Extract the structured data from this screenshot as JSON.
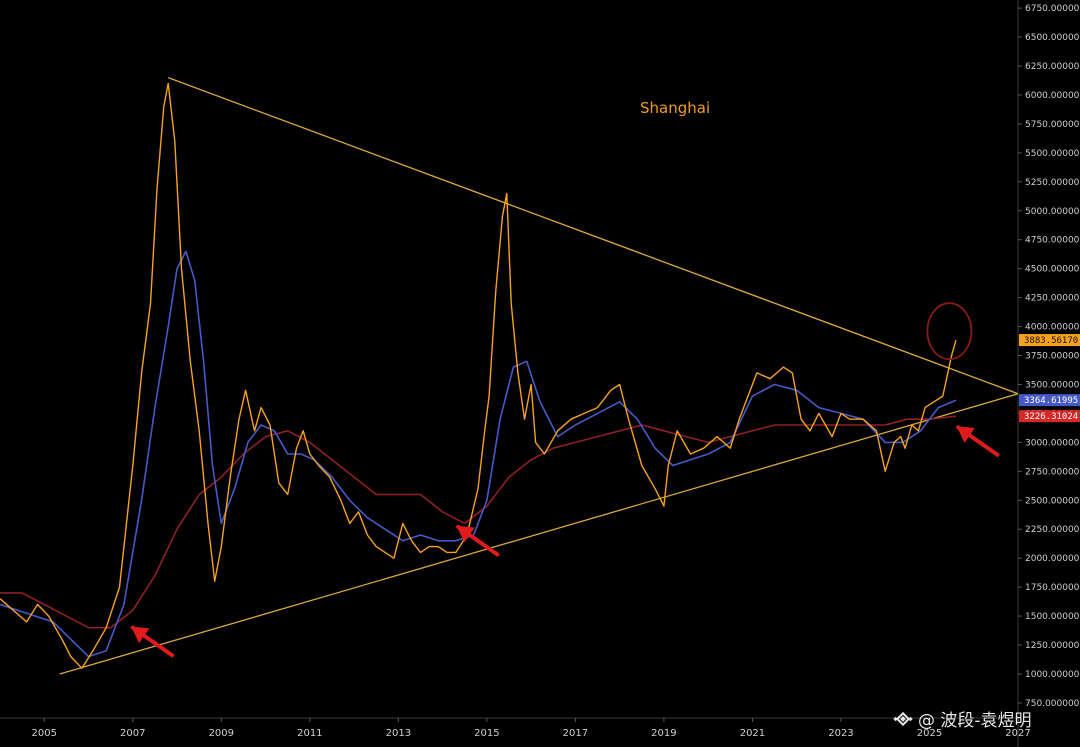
{
  "chart_data": {
    "type": "line",
    "title": "Shanghai",
    "xlabel": "",
    "ylabel": "",
    "xlim": [
      2004.0,
      2027.0
    ],
    "ylim": [
      620,
      6820
    ],
    "y_ticks": [
      "750.000000",
      "1000.000000",
      "1250.000000",
      "1500.000000",
      "1750.000000",
      "2000.000000",
      "2250.000000",
      "2500.000000",
      "2750.000000",
      "3000.000000",
      "3250.000000",
      "3500.000000",
      "3750.000000",
      "4000.000000",
      "4250.000000",
      "4500.000000",
      "4750.000000",
      "5000.000000",
      "5250.000000",
      "5500.000000",
      "5750.000000",
      "6000.000000",
      "6250.000000",
      "6500.000000",
      "6750.000000"
    ],
    "x_ticks": [
      "2005",
      "2007",
      "2009",
      "2011",
      "2013",
      "2015",
      "2017",
      "2019",
      "2021",
      "2023",
      "2025",
      "2027"
    ],
    "series": [
      {
        "name": "",
        "color": "#f7a21b",
        "x": [
          2004.0,
          2004.3,
          2004.6,
          2004.85,
          2005.1,
          2005.4,
          2005.6,
          2005.85,
          2006.1,
          2006.4,
          2006.7,
          2007.0,
          2007.2,
          2007.4,
          2007.55,
          2007.7,
          2007.8,
          2007.95,
          2008.1,
          2008.3,
          2008.5,
          2008.7,
          2008.85,
          2009.0,
          2009.2,
          2009.4,
          2009.55,
          2009.75,
          2009.9,
          2010.1,
          2010.3,
          2010.5,
          2010.7,
          2010.85,
          2011.0,
          2011.2,
          2011.45,
          2011.7,
          2011.9,
          2012.1,
          2012.3,
          2012.5,
          2012.7,
          2012.9,
          2013.1,
          2013.3,
          2013.5,
          2013.7,
          2013.9,
          2014.1,
          2014.3,
          2014.55,
          2014.8,
          2014.95,
          2015.05,
          2015.2,
          2015.35,
          2015.45,
          2015.55,
          2015.7,
          2015.85,
          2016.0,
          2016.1,
          2016.3,
          2016.6,
          2016.9,
          2017.2,
          2017.5,
          2017.8,
          2018.0,
          2018.2,
          2018.5,
          2018.8,
          2019.0,
          2019.1,
          2019.3,
          2019.6,
          2019.9,
          2020.2,
          2020.5,
          2020.7,
          2020.9,
          2021.1,
          2021.4,
          2021.7,
          2021.9,
          2022.1,
          2022.3,
          2022.5,
          2022.8,
          2023.0,
          2023.2,
          2023.5,
          2023.8,
          2024.0,
          2024.2,
          2024.35,
          2024.45,
          2024.6,
          2024.75,
          2024.9,
          2025.1,
          2025.3,
          2025.5,
          2025.6
        ],
        "values": [
          1650,
          1550,
          1450,
          1600,
          1500,
          1300,
          1150,
          1050,
          1200,
          1400,
          1750,
          2800,
          3600,
          4200,
          5200,
          5900,
          6100,
          5600,
          4500,
          3700,
          3100,
          2300,
          1800,
          2100,
          2700,
          3200,
          3450,
          3100,
          3300,
          3150,
          2650,
          2550,
          2950,
          3100,
          2900,
          2800,
          2700,
          2500,
          2300,
          2400,
          2200,
          2100,
          2050,
          2000,
          2300,
          2150,
          2050,
          2100,
          2100,
          2050,
          2050,
          2200,
          2600,
          3100,
          3400,
          4300,
          4950,
          5150,
          4200,
          3600,
          3200,
          3500,
          3000,
          2900,
          3100,
          3200,
          3250,
          3300,
          3450,
          3500,
          3200,
          2800,
          2600,
          2450,
          2800,
          3100,
          2900,
          2950,
          3050,
          2950,
          3200,
          3400,
          3600,
          3550,
          3650,
          3600,
          3200,
          3100,
          3250,
          3050,
          3250,
          3200,
          3200,
          3100,
          2750,
          3000,
          3050,
          2950,
          3150,
          3100,
          3300,
          3350,
          3400,
          3750,
          3883.5617
        ]
      },
      {
        "name": "",
        "color": "#4659c9",
        "x": [
          2004.0,
          2004.4,
          2004.8,
          2005.2,
          2005.6,
          2006.0,
          2006.4,
          2006.8,
          2007.2,
          2007.5,
          2007.8,
          2008.0,
          2008.2,
          2008.4,
          2008.6,
          2008.8,
          2009.0,
          2009.3,
          2009.6,
          2009.9,
          2010.2,
          2010.5,
          2010.8,
          2011.1,
          2011.5,
          2011.9,
          2012.3,
          2012.7,
          2013.1,
          2013.5,
          2013.9,
          2014.3,
          2014.7,
          2015.0,
          2015.3,
          2015.6,
          2015.9,
          2016.2,
          2016.6,
          2017.0,
          2017.5,
          2018.0,
          2018.4,
          2018.8,
          2019.2,
          2019.6,
          2020.0,
          2020.5,
          2021.0,
          2021.5,
          2022.0,
          2022.5,
          2023.0,
          2023.5,
          2024.0,
          2024.4,
          2024.8,
          2025.2,
          2025.6
        ],
        "values": [
          1600,
          1550,
          1500,
          1450,
          1300,
          1150,
          1200,
          1600,
          2500,
          3300,
          4000,
          4500,
          4650,
          4400,
          3700,
          2800,
          2300,
          2600,
          3000,
          3150,
          3100,
          2900,
          2900,
          2850,
          2700,
          2500,
          2350,
          2250,
          2150,
          2200,
          2150,
          2150,
          2200,
          2500,
          3200,
          3650,
          3700,
          3350,
          3050,
          3150,
          3250,
          3350,
          3200,
          2950,
          2800,
          2850,
          2900,
          3000,
          3400,
          3500,
          3450,
          3300,
          3250,
          3200,
          3000,
          3000,
          3100,
          3300,
          3364.61995
        ]
      },
      {
        "name": "",
        "color": "#8f1f28",
        "x": [
          2004.0,
          2004.5,
          2005.0,
          2005.5,
          2006.0,
          2006.5,
          2007.0,
          2007.5,
          2008.0,
          2008.5,
          2009.0,
          2009.5,
          2010.0,
          2010.5,
          2011.0,
          2011.5,
          2012.0,
          2012.5,
          2013.0,
          2013.5,
          2014.0,
          2014.5,
          2015.0,
          2015.5,
          2016.0,
          2016.5,
          2017.0,
          2017.5,
          2018.0,
          2018.5,
          2019.0,
          2019.5,
          2020.0,
          2020.5,
          2021.0,
          2021.5,
          2022.0,
          2022.5,
          2023.0,
          2023.5,
          2024.0,
          2024.5,
          2025.0,
          2025.6
        ],
        "values": [
          1700,
          1700,
          1600,
          1500,
          1400,
          1400,
          1550,
          1850,
          2250,
          2550,
          2700,
          2900,
          3050,
          3100,
          3000,
          2850,
          2700,
          2550,
          2550,
          2550,
          2400,
          2300,
          2450,
          2700,
          2850,
          2950,
          3000,
          3050,
          3100,
          3150,
          3100,
          3050,
          3000,
          3050,
          3100,
          3150,
          3150,
          3150,
          3150,
          3150,
          3150,
          3200,
          3200,
          3226.31024
        ]
      }
    ],
    "trendlines": [
      {
        "x": [
          2007.8,
          2027.0
        ],
        "values": [
          6150,
          3420
        ],
        "color": "#d9a638"
      },
      {
        "x": [
          2005.35,
          2027.0
        ],
        "values": [
          1000,
          3420
        ],
        "color": "#d9a638"
      }
    ],
    "price_tags": [
      {
        "label": "3883.56170",
        "value": 3883.5617,
        "color": "#f7a21b"
      },
      {
        "label": "3364.61995",
        "value": 3364.61995,
        "color": "#4659c9"
      },
      {
        "label": "3226.31024",
        "value": 3226.31024,
        "color": "#d62828"
      }
    ],
    "annotations": [
      {
        "type": "arrow",
        "x": 2007.0,
        "value": 1400
      },
      {
        "type": "arrow",
        "x": 2014.35,
        "value": 2270
      },
      {
        "type": "arrow",
        "x": 2025.65,
        "value": 3130
      },
      {
        "type": "circle",
        "x": 2025.45,
        "value": 3960
      }
    ],
    "grid": false,
    "legend": "none"
  },
  "watermark": {
    "text": "@ 波段-袁煜明",
    "icon": "binance-logo-icon"
  },
  "colors": {
    "background": "#000000",
    "axis_text": "#cfcfcf",
    "arrow": "#e01b1b",
    "circle": "#8a1a1a"
  }
}
